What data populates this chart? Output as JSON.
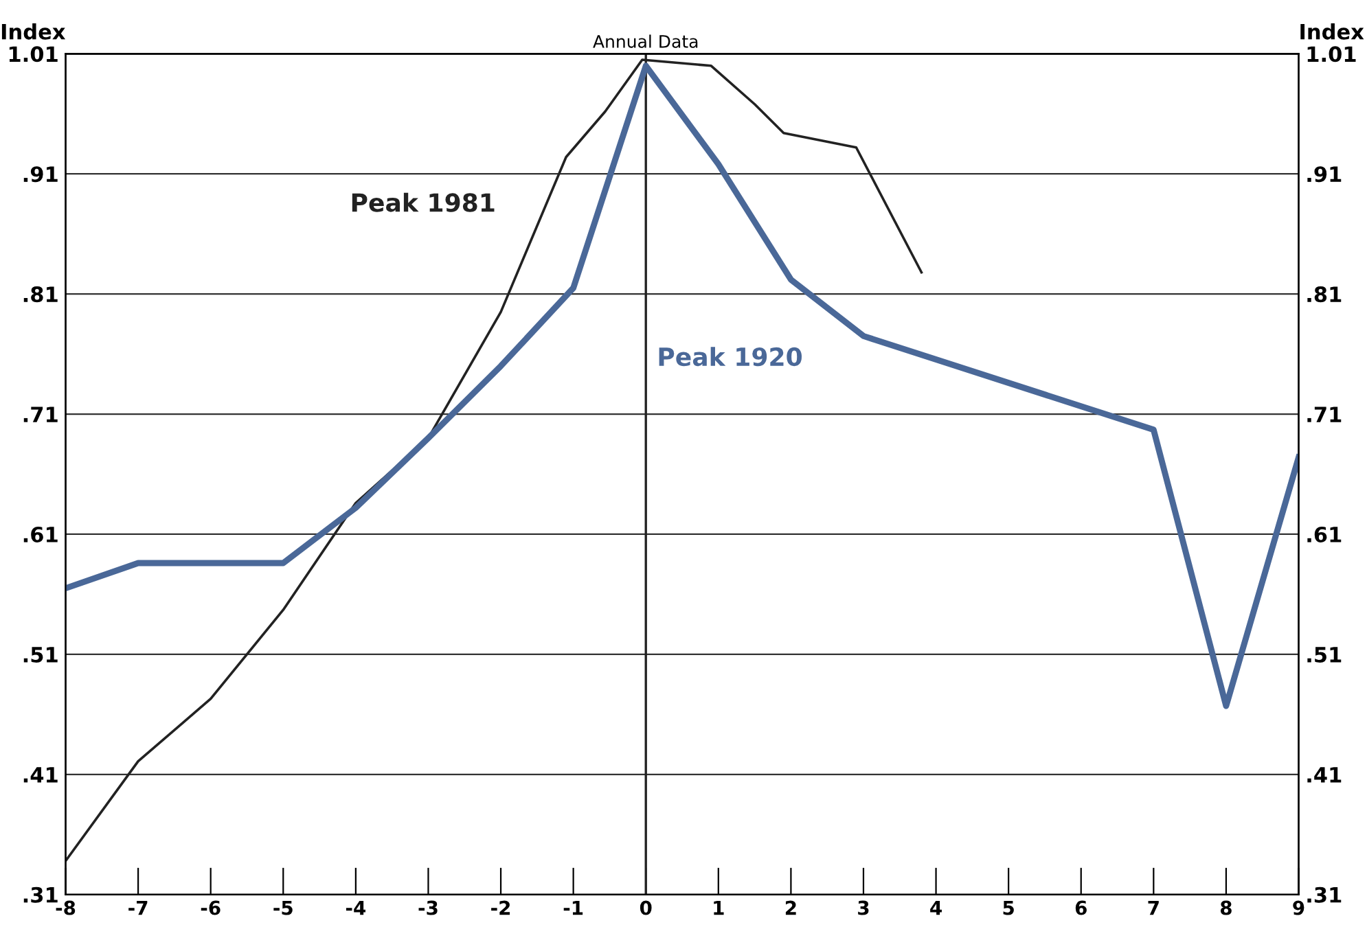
{
  "chart_data": {
    "type": "line",
    "ylabel": "Index",
    "y2label": "Index",
    "xlim": [
      -8,
      9
    ],
    "xticks": [
      -8,
      -7,
      -6,
      -5,
      -4,
      -3,
      -2,
      -1,
      0,
      1,
      2,
      3,
      4,
      5,
      6,
      7,
      8,
      9
    ],
    "ylim": [
      0.31,
      1.01
    ],
    "yticks": [
      {
        "value": 0.31,
        "label": ".31"
      },
      {
        "value": 0.41,
        "label": ".41"
      },
      {
        "value": 0.51,
        "label": ".51"
      },
      {
        "value": 0.61,
        "label": ".61"
      },
      {
        "value": 0.71,
        "label": ".71"
      },
      {
        "value": 0.81,
        "label": ".81"
      },
      {
        "value": 0.91,
        "label": ".91"
      },
      1.01
    ],
    "y2lim": [
      0.31,
      1.01
    ],
    "y2ticks": [
      {
        "value": 0.31,
        "label": ".31"
      },
      {
        "value": 0.41,
        "label": ".41"
      },
      {
        "value": 0.51,
        "label": ".51"
      },
      {
        "value": 0.61,
        "label": ".61"
      },
      {
        "value": 0.71,
        "label": ".71"
      },
      {
        "value": 0.81,
        "label": ".81"
      },
      {
        "value": 0.91,
        "label": ".91"
      },
      1.01
    ],
    "grid": "y",
    "marker": "none",
    "line_style": "solid",
    "ref_lines": [
      {
        "axis": "x",
        "value": 0,
        "label": "Annual Data",
        "color": "#222222"
      }
    ],
    "series": [
      {
        "name": "Peak 1981",
        "color": "#222222",
        "x": [
          -8,
          -7,
          -6,
          -5,
          -4,
          -3,
          -2,
          -1.1,
          -0.56,
          -0.05,
          0.9,
          1.5,
          1.9,
          2.9,
          3.8
        ],
        "values": [
          0.338,
          0.421,
          0.473,
          0.547,
          0.636,
          0.69,
          0.795,
          0.924,
          0.962,
          1.005,
          1.0,
          0.968,
          0.944,
          0.932,
          0.828
        ]
      },
      {
        "name": "Peak 1920",
        "color": "#4a6898",
        "x": [
          -8,
          -7,
          -6,
          -5,
          -4,
          -3,
          -2,
          -1,
          0,
          1,
          2,
          3,
          7,
          8,
          9
        ],
        "values": [
          0.565,
          0.586,
          0.586,
          0.586,
          0.632,
          0.69,
          0.75,
          0.815,
          1.0,
          0.918,
          0.822,
          0.775,
          0.697,
          0.467,
          0.674
        ]
      }
    ]
  }
}
